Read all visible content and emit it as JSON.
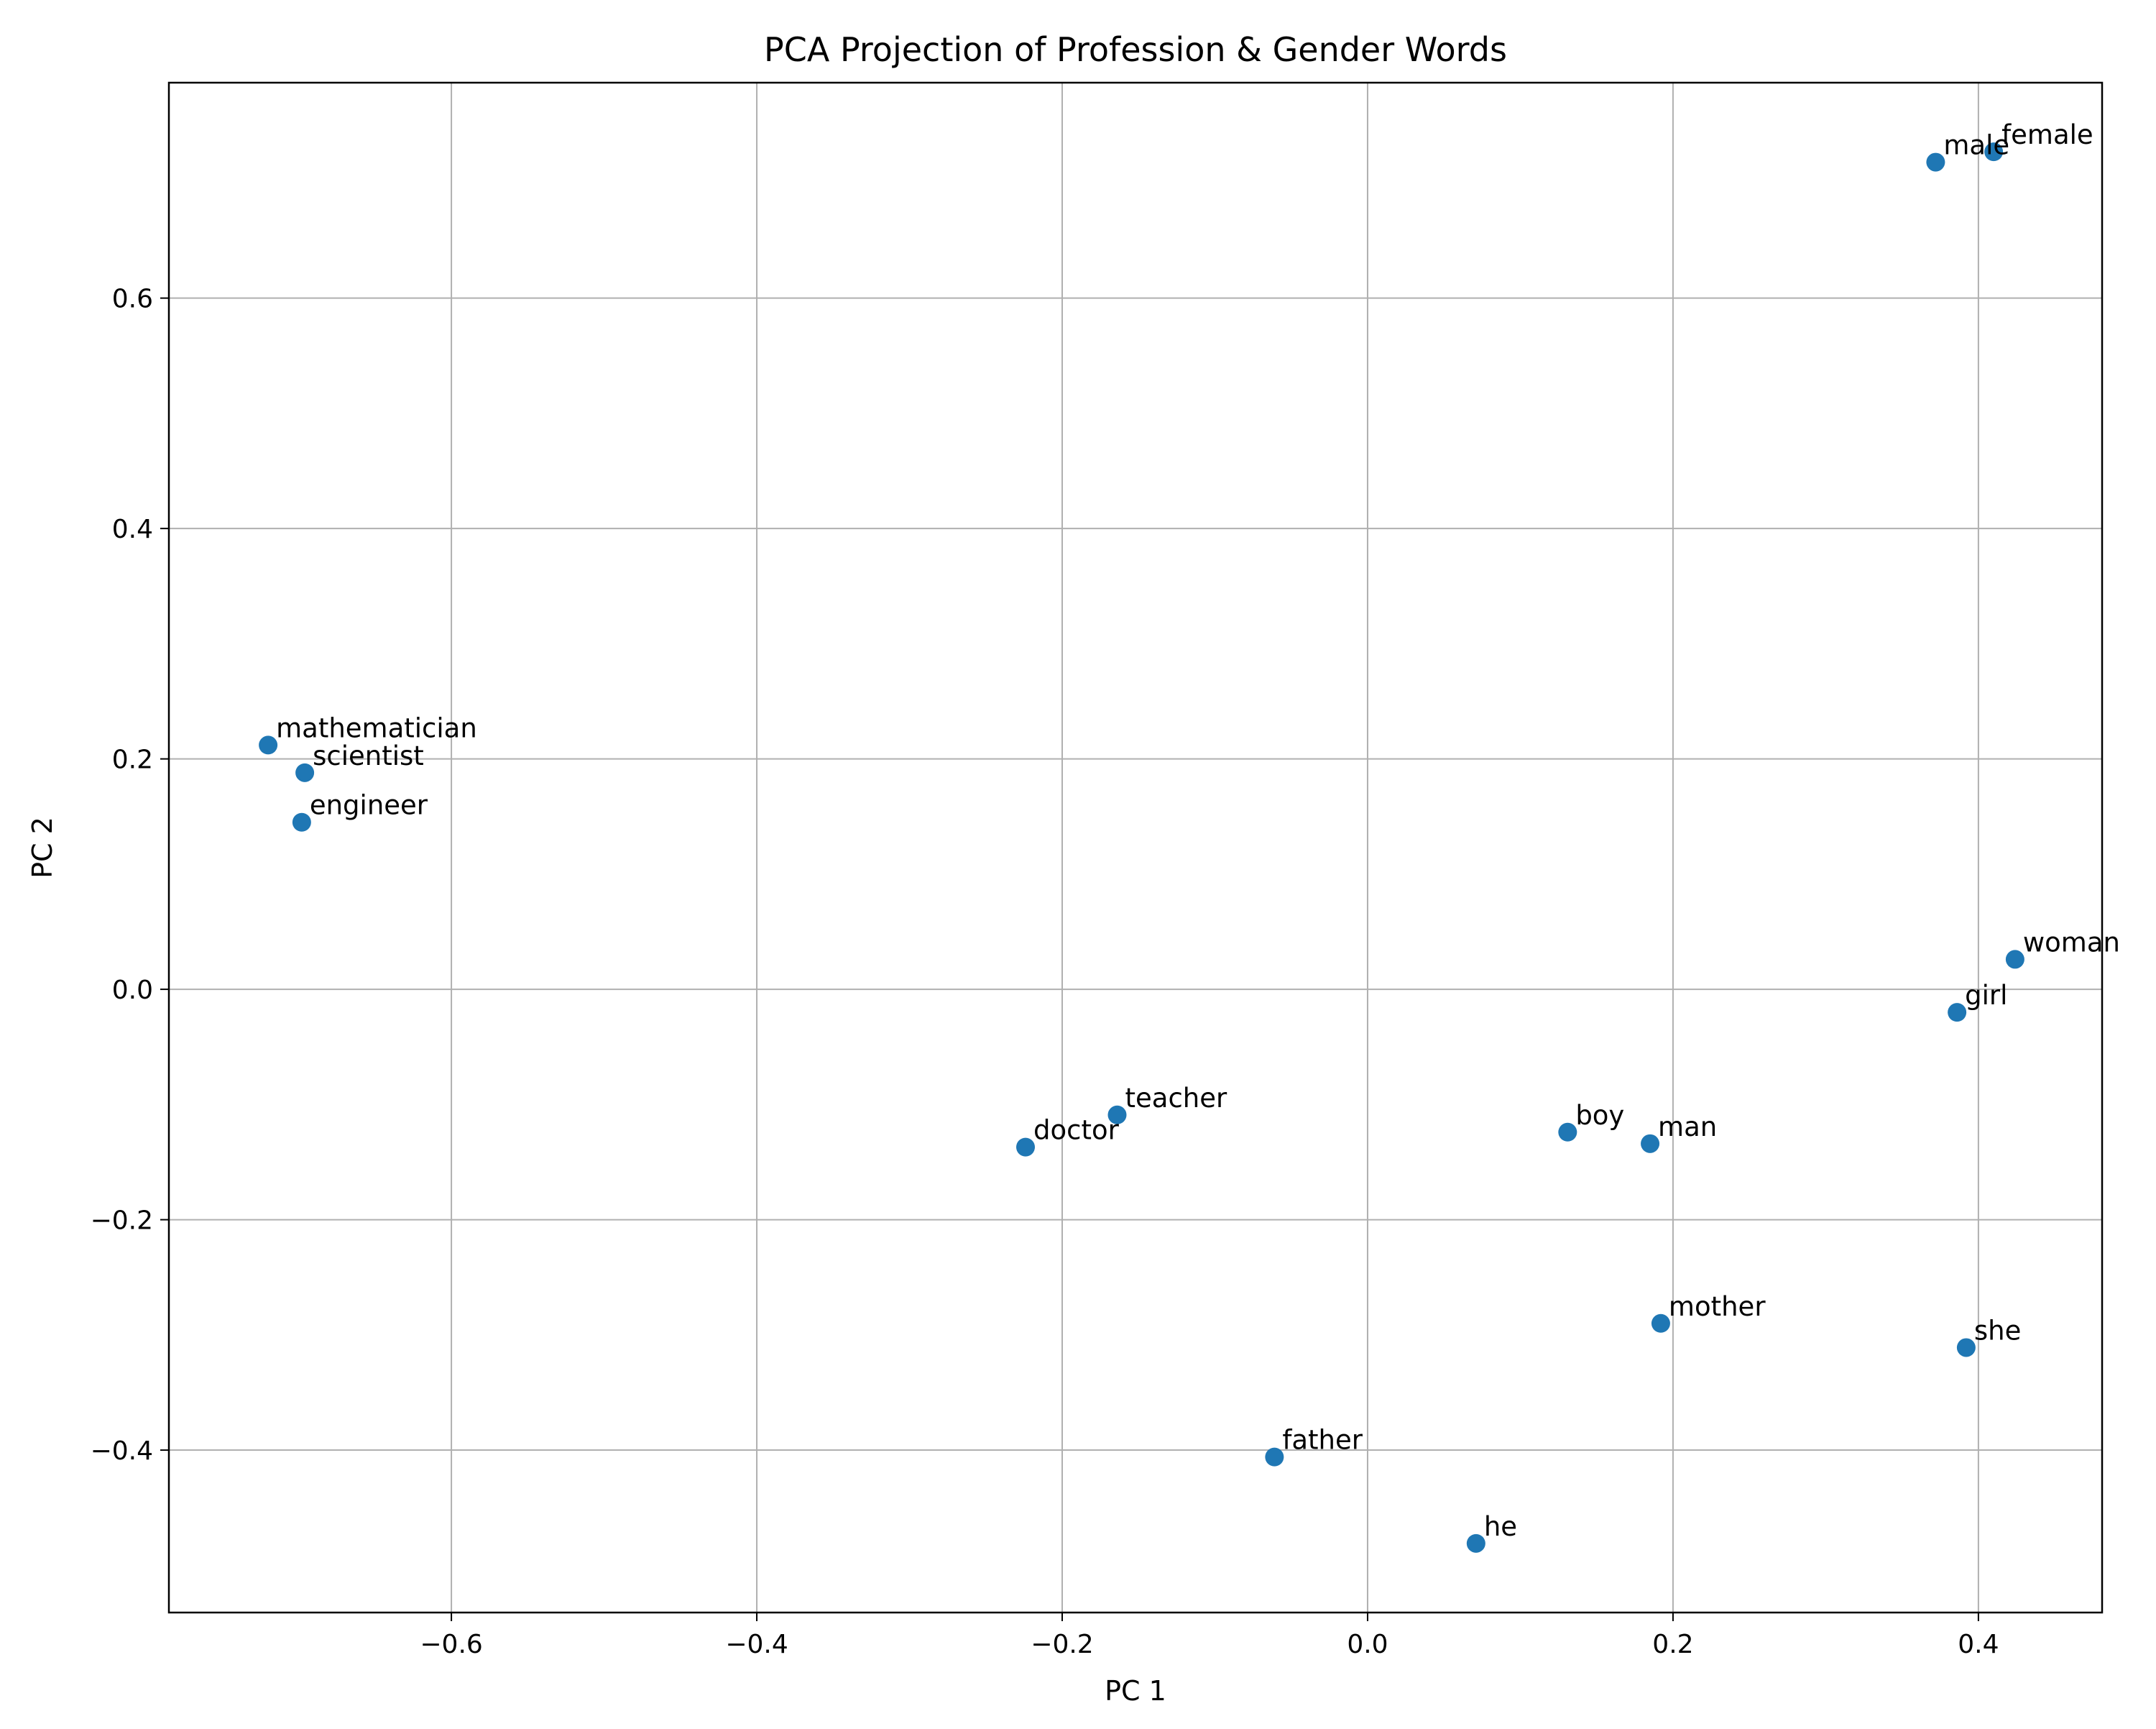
{
  "chart_data": {
    "type": "scatter",
    "title": "PCA Projection of Profession & Gender Words",
    "xlabel": "PC 1",
    "ylabel": "PC 2",
    "xlim": [
      -0.785,
      0.481
    ],
    "ylim": [
      -0.541,
      0.787
    ],
    "grid": true,
    "legend": "none",
    "marker_color": "#1f77b4",
    "xticks": [
      {
        "value": -0.6,
        "label": "−0.6"
      },
      {
        "value": -0.4,
        "label": "−0.4"
      },
      {
        "value": -0.2,
        "label": "−0.2"
      },
      {
        "value": 0.0,
        "label": "0.0"
      },
      {
        "value": 0.2,
        "label": "0.2"
      },
      {
        "value": 0.4,
        "label": "0.4"
      }
    ],
    "yticks": [
      {
        "value": -0.4,
        "label": "−0.4"
      },
      {
        "value": -0.2,
        "label": "−0.2"
      },
      {
        "value": 0.0,
        "label": "0.0"
      },
      {
        "value": 0.2,
        "label": "0.2"
      },
      {
        "value": 0.4,
        "label": "0.4"
      },
      {
        "value": 0.6,
        "label": "0.6"
      }
    ],
    "points": [
      {
        "label": "mathematician",
        "x": -0.72,
        "y": 0.212
      },
      {
        "label": "scientist",
        "x": -0.696,
        "y": 0.188
      },
      {
        "label": "engineer",
        "x": -0.698,
        "y": 0.145
      },
      {
        "label": "doctor",
        "x": -0.224,
        "y": -0.137
      },
      {
        "label": "teacher",
        "x": -0.164,
        "y": -0.109
      },
      {
        "label": "father",
        "x": -0.061,
        "y": -0.406
      },
      {
        "label": "he",
        "x": 0.071,
        "y": -0.481
      },
      {
        "label": "boy",
        "x": 0.131,
        "y": -0.124
      },
      {
        "label": "man",
        "x": 0.185,
        "y": -0.134
      },
      {
        "label": "mother",
        "x": 0.192,
        "y": -0.29
      },
      {
        "label": "male",
        "x": 0.372,
        "y": 0.718
      },
      {
        "label": "female",
        "x": 0.41,
        "y": 0.727
      },
      {
        "label": "girl",
        "x": 0.386,
        "y": -0.02
      },
      {
        "label": "she",
        "x": 0.392,
        "y": -0.311
      },
      {
        "label": "woman",
        "x": 0.424,
        "y": 0.026
      }
    ]
  }
}
